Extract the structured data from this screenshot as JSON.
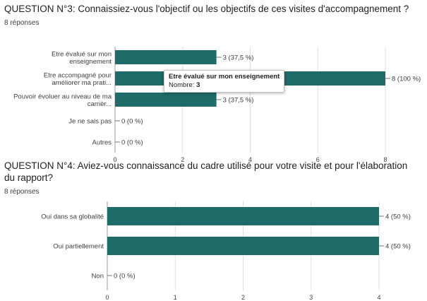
{
  "colors": {
    "bar": "#1e6b68",
    "grid": "#e0e0e0",
    "axis": "#9e9e9e"
  },
  "chart_data": [
    {
      "type": "bar",
      "orientation": "horizontal",
      "title": "QUESTION N°3: Connaissiez-vous l'objectif ou les objectifs de ces visites d'accompagnement ?",
      "subtitle": "8 réponses",
      "categories": [
        [
          "Etre évalué sur mon",
          "enseignement"
        ],
        [
          "Etre accompagné pour",
          "améliorer ma prati..."
        ],
        [
          "Pouvoir évoluer au niveau de ma",
          "carrièr..."
        ],
        [
          "Je ne sais pas"
        ],
        [
          "Autres"
        ]
      ],
      "values": [
        3,
        8,
        3,
        0,
        0
      ],
      "data_labels": [
        "3 (37,5 %)",
        "8 (100 %)",
        "3 (37,5 %)",
        "0 (0 %)",
        "0 (0 %)"
      ],
      "xlim": [
        0,
        8
      ],
      "xticks": [
        "0",
        "2",
        "4",
        "6",
        "8"
      ],
      "grid": true,
      "tooltip": {
        "category": "Etre évalué sur mon enseignement",
        "label": "Nombre:",
        "value": "3"
      }
    },
    {
      "type": "bar",
      "orientation": "horizontal",
      "title": "QUESTION N°4: Aviez-vous connaissance du cadre utilisé pour votre visite et pour l'élaboration du rapport?",
      "subtitle": "8 réponses",
      "categories": [
        [
          "Oui dans sa globalité"
        ],
        [
          "Oui partiellement"
        ],
        [
          "Non"
        ]
      ],
      "values": [
        4,
        4,
        0
      ],
      "data_labels": [
        "4 (50 %)",
        "4 (50 %)",
        "0 (0 %)"
      ],
      "xlim": [
        0,
        4
      ],
      "xticks": [
        "0",
        "1",
        "2",
        "3",
        "4"
      ],
      "grid": true
    }
  ]
}
